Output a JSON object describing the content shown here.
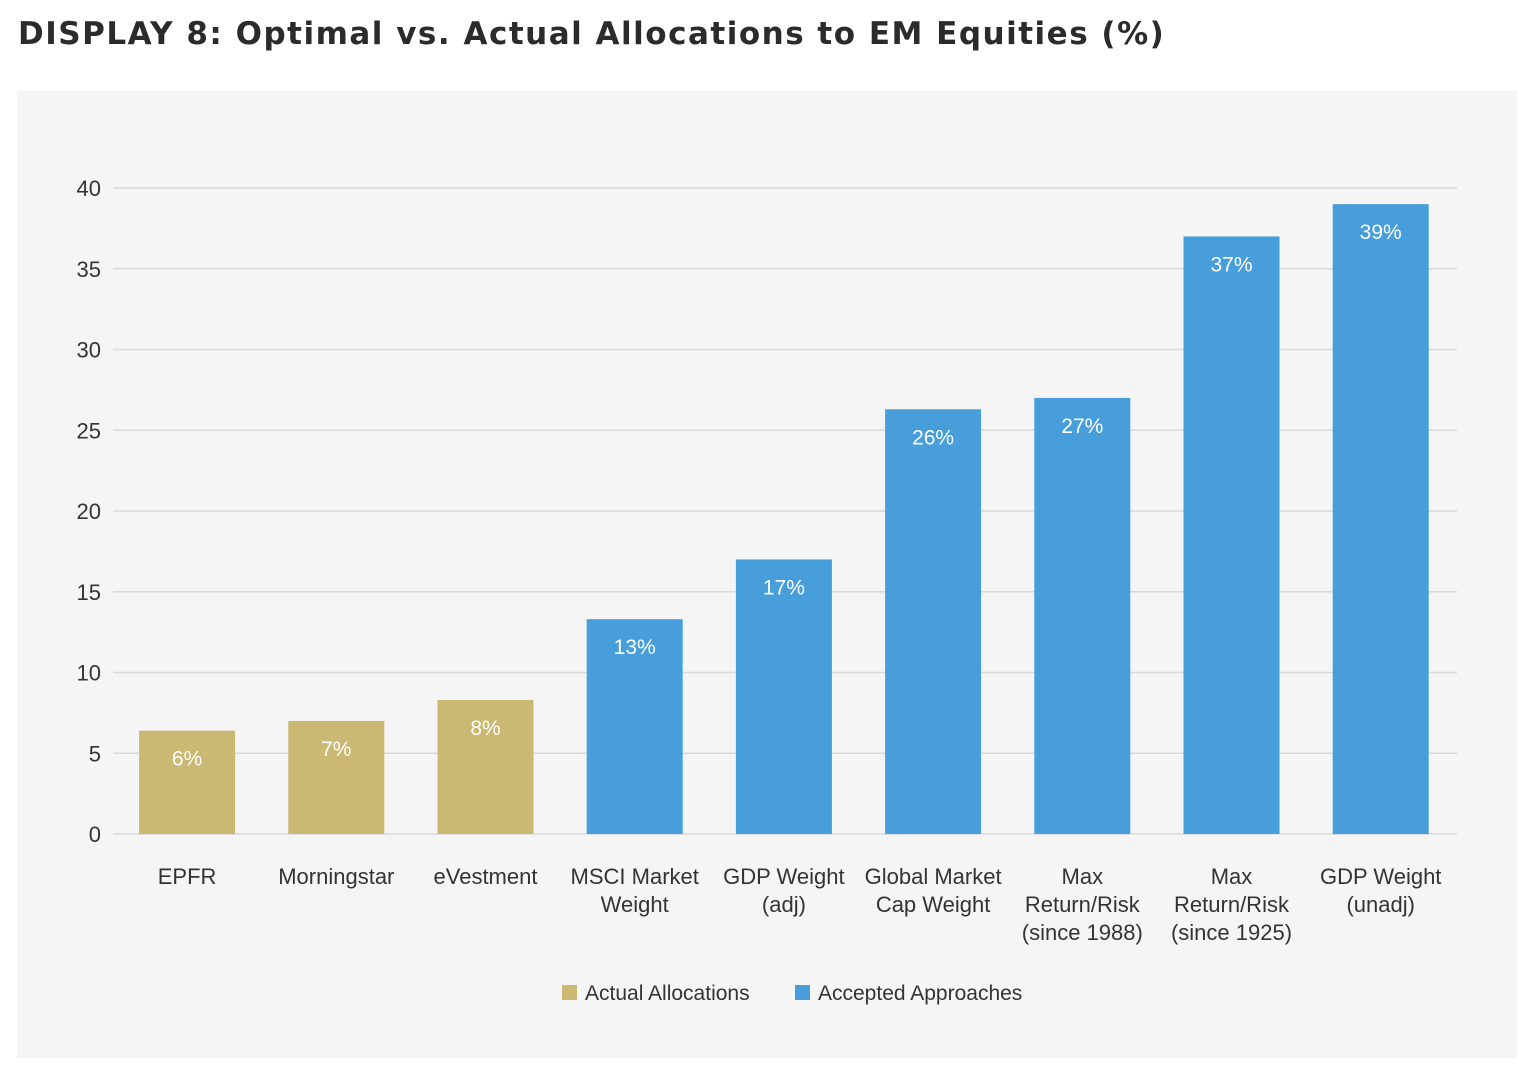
{
  "title": "DISPLAY 8: Optimal vs. Actual Allocations to EM Equities (%)",
  "colors": {
    "actual": "#cbb872",
    "accepted": "#479edb",
    "grid": "#d9d9d9",
    "panel": "#f5f5f5"
  },
  "chart_data": {
    "type": "bar",
    "title": "DISPLAY 8: Optimal vs. Actual Allocations to EM Equities (%)",
    "xlabel": "",
    "ylabel": "",
    "ylim": [
      0,
      40
    ],
    "yticks": [
      0,
      5,
      10,
      15,
      20,
      25,
      30,
      35,
      40
    ],
    "grid": true,
    "legend_position": "bottom-center",
    "categories": [
      [
        "EPFR"
      ],
      [
        "Morningstar"
      ],
      [
        "eVestment"
      ],
      [
        "MSCI Market",
        "Weight"
      ],
      [
        "GDP Weight",
        "(adj)"
      ],
      [
        "Global Market",
        "Cap Weight"
      ],
      [
        "Max",
        "Return/Risk",
        "(since 1988)"
      ],
      [
        "Max",
        "Return/Risk",
        "(since 1925)"
      ],
      [
        "GDP Weight",
        "(unadj)"
      ]
    ],
    "values": [
      6.4,
      7.0,
      8.3,
      13.3,
      17.0,
      26.3,
      27.0,
      37.0,
      39.0
    ],
    "data_labels": [
      "6%",
      "7%",
      "8%",
      "13%",
      "17%",
      "26%",
      "27%",
      "37%",
      "39%"
    ],
    "series_index": [
      0,
      0,
      0,
      1,
      1,
      1,
      1,
      1,
      1
    ],
    "series": [
      {
        "name": "Actual Allocations",
        "color": "#cbb872"
      },
      {
        "name": "Accepted Approaches",
        "color": "#479edb"
      }
    ]
  }
}
